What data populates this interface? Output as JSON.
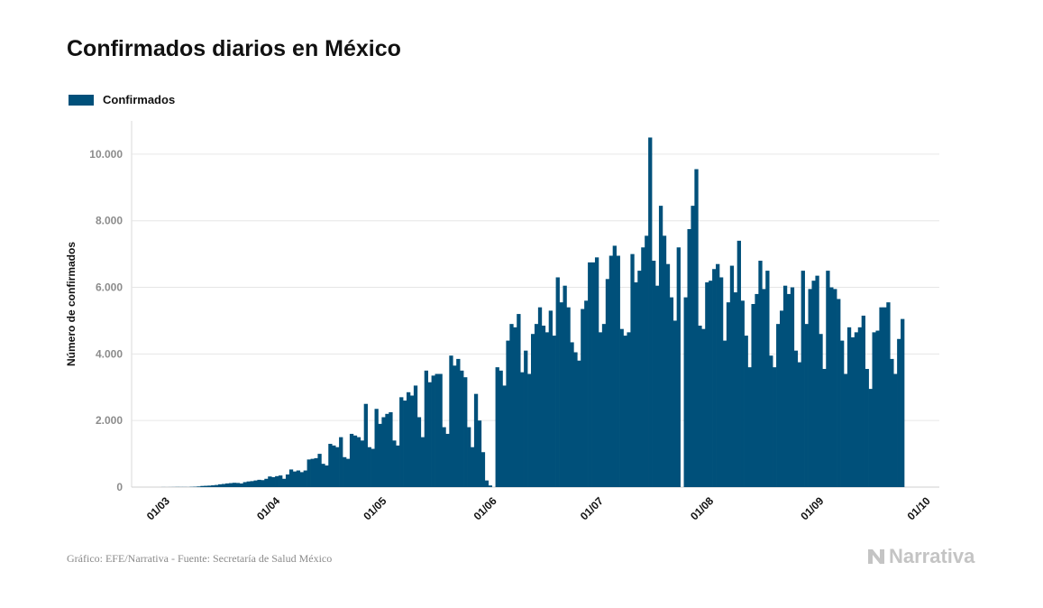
{
  "chart_data": {
    "type": "bar",
    "title": "Confirmados diarios en México",
    "ylabel": "Número de confirmados",
    "xlabel": "",
    "ylim": [
      0,
      11000
    ],
    "ytick_values": [
      0,
      2000,
      4000,
      6000,
      8000,
      10000
    ],
    "ytick_labels": [
      "0",
      "2.000",
      "4.000",
      "6.000",
      "8.000",
      "10.000"
    ],
    "xtick_labels": [
      "01/03",
      "01/04",
      "01/05",
      "01/06",
      "01/07",
      "01/08",
      "01/09",
      "01/10"
    ],
    "xtick_dates": [
      "2020-03-01",
      "2020-04-01",
      "2020-05-01",
      "2020-06-01",
      "2020-07-01",
      "2020-08-01",
      "2020-09-01",
      "2020-10-01"
    ],
    "grid": true,
    "legend_position": "top-left",
    "x_start": "2020-02-28",
    "x_end": "2020-09-30",
    "series": [
      {
        "name": "Confirmados",
        "color": "#00507a",
        "values": [
          0,
          2,
          1,
          2,
          3,
          5,
          4,
          4,
          3,
          8,
          12,
          20,
          35,
          40,
          45,
          55,
          65,
          85,
          95,
          110,
          120,
          130,
          125,
          110,
          150,
          170,
          180,
          200,
          220,
          210,
          250,
          320,
          300,
          330,
          350,
          250,
          380,
          530,
          470,
          500,
          450,
          500,
          830,
          850,
          870,
          1000,
          700,
          650,
          1300,
          1250,
          1200,
          1500,
          900,
          850,
          1600,
          1550,
          1500,
          1400,
          2500,
          1200,
          1150,
          2350,
          1900,
          2100,
          2200,
          2250,
          1400,
          1250,
          2700,
          2600,
          2850,
          2750,
          3050,
          2100,
          1500,
          3500,
          3150,
          3350,
          3400,
          3400,
          1800,
          1600,
          3950,
          3650,
          3850,
          3500,
          3300,
          1800,
          1200,
          2800,
          2000,
          1050,
          200,
          50,
          0,
          3600,
          3500,
          3050,
          4400,
          4900,
          4800,
          5200,
          3450,
          4100,
          3400,
          4600,
          4900,
          5400,
          4850,
          4650,
          5300,
          4550,
          6300,
          5550,
          6050,
          5400,
          4350,
          4050,
          3800,
          5350,
          5600,
          6750,
          6750,
          6900,
          4650,
          4900,
          6250,
          6950,
          7250,
          6950,
          4750,
          4550,
          4650,
          7000,
          6150,
          6500,
          7200,
          7550,
          10500,
          6800,
          6050,
          8450,
          7550,
          6700,
          5700,
          5000,
          7200,
          0,
          5700,
          7750,
          8450,
          9550,
          4850,
          4750,
          6150,
          6200,
          6550,
          6700,
          6300,
          4400,
          5550,
          6650,
          5850,
          7400,
          5600,
          4550,
          3600,
          5500,
          5800,
          6800,
          5950,
          6500,
          3950,
          3600,
          4900,
          5300,
          6050,
          5800,
          6000,
          4100,
          3750,
          6500,
          4900,
          5950,
          6200,
          6350,
          4600,
          3550,
          6500,
          6000,
          5950,
          5650,
          4400,
          3400,
          4800,
          4500,
          4650,
          4800,
          5150,
          3550,
          2950,
          4650,
          4700,
          5400,
          5400,
          5550,
          3850,
          3400,
          4450,
          5050
        ]
      }
    ]
  },
  "footer": {
    "source": "Gráfico: EFE/Narrativa - Fuente: Secretaría de Salud México"
  },
  "brand": {
    "name": "Narrativa"
  }
}
